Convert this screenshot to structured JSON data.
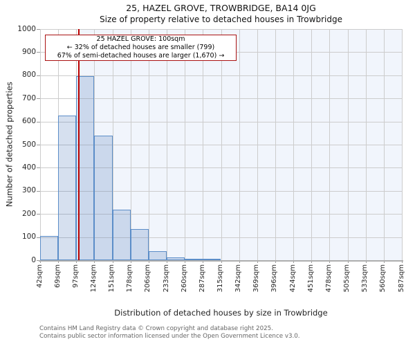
{
  "title": "25, HAZEL GROVE, TROWBRIDGE, BA14 0JG",
  "subtitle": "Size of property relative to detached houses in Trowbridge",
  "annotation": {
    "line1": "25 HAZEL GROVE: 100sqm",
    "line2": "← 32% of detached houses are smaller (799)",
    "line3": "67% of semi-detached houses are larger (1,670) →"
  },
  "chart_data": {
    "type": "bar",
    "title": "25, HAZEL GROVE, TROWBRIDGE, BA14 0JG",
    "subtitle": "Size of property relative to detached houses in Trowbridge",
    "xlabel": "Distribution of detached houses by size in Trowbridge",
    "ylabel": "Number of detached properties",
    "tick_labels": [
      "42sqm",
      "69sqm",
      "97sqm",
      "124sqm",
      "151sqm",
      "178sqm",
      "206sqm",
      "233sqm",
      "260sqm",
      "287sqm",
      "315sqm",
      "342sqm",
      "369sqm",
      "396sqm",
      "424sqm",
      "451sqm",
      "478sqm",
      "505sqm",
      "533sqm",
      "560sqm",
      "587sqm"
    ],
    "bin_edges_sqm": [
      42,
      69,
      97,
      124,
      151,
      178,
      206,
      233,
      260,
      287,
      315,
      342,
      369,
      396,
      424,
      451,
      478,
      505,
      533,
      560,
      587
    ],
    "values": [
      105,
      625,
      795,
      540,
      220,
      135,
      40,
      12,
      5,
      7,
      0,
      0,
      0,
      0,
      0,
      0,
      0,
      0,
      0,
      0
    ],
    "ylim": [
      0,
      1000
    ],
    "ytick_step": 100,
    "grid": true,
    "legend": false,
    "marker": {
      "sqm": 100
    },
    "colors": {
      "bar_fill": "rgba(70,114,181,0.22)",
      "bar_edge": "#5b8dc8",
      "marker_line": "#bb0000",
      "annotation_border": "#aa1111",
      "shade": "#f1f5fc",
      "grid": "#cccccc",
      "axis": "#adadad",
      "tick": "#999999"
    }
  },
  "footer": {
    "line1": "Contains HM Land Registry data © Crown copyright and database right 2025.",
    "line2": "Contains public sector information licensed under the Open Government Licence v3.0."
  }
}
